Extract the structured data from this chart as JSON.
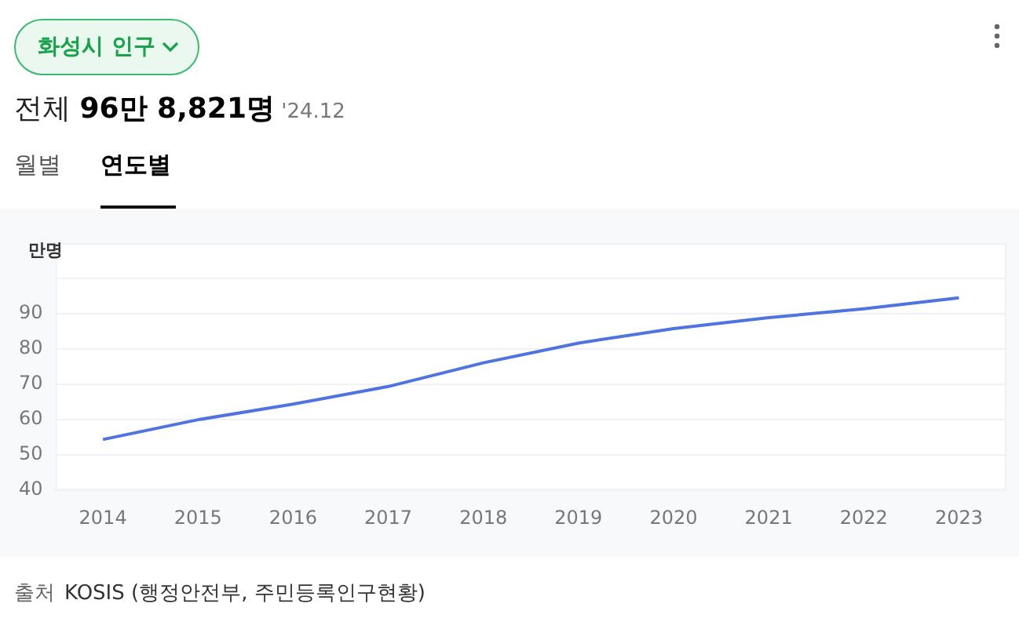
{
  "chart_data": {
    "type": "line",
    "title": "화성시 인구",
    "subtitle": "전체 96만 8,821명 '24.12",
    "ylabel": "만명",
    "annotations": [
      "월별",
      "연도별",
      "출처 KOSIS (행정안전부, 주민등록인구현황)"
    ],
    "categories": [
      "2014",
      "2015",
      "2016",
      "2017",
      "2018",
      "2019",
      "2020",
      "2021",
      "2022",
      "2023"
    ],
    "series": [
      {
        "color": "#4f73df",
        "values": [
          54.4,
          60.0,
          64.4,
          69.4,
          76.1,
          81.7,
          85.8,
          88.9,
          91.4,
          94.5
        ]
      }
    ],
    "ylim": [
      40,
      110
    ],
    "yticks": [
      40,
      50,
      60,
      70,
      80,
      90,
      {
        "value": 100,
        "label": null
      }
    ],
    "grid": "y",
    "legend": false,
    "marker": "none",
    "line_style": "solid"
  }
}
